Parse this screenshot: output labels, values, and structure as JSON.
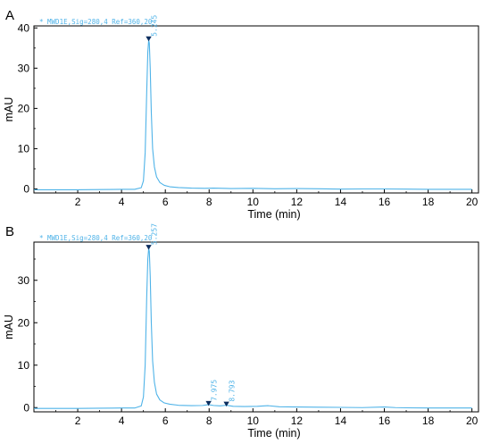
{
  "chart_data": [
    {
      "type": "line",
      "panel_label": "A",
      "header": "MWD1E,Sig=280,4  Ref=360,20",
      "xlabel": "Time (min)",
      "ylabel": "mAU",
      "xlim": [
        0,
        20.3
      ],
      "ylim": [
        -1,
        40.5
      ],
      "xticks": [
        2,
        4,
        6,
        8,
        10,
        12,
        14,
        16,
        18,
        20
      ],
      "yticks": [
        0,
        10,
        20,
        30,
        40
      ],
      "line_color": "#4fb3e8",
      "grid": false,
      "series": [
        {
          "x": [
            0,
            1,
            2,
            3,
            4,
            4.6,
            4.9,
            5.0,
            5.08,
            5.15,
            5.2,
            5.24,
            5.27,
            5.31,
            5.36,
            5.42,
            5.5,
            5.6,
            5.75,
            5.95,
            6.2,
            6.6,
            7.2,
            7.8,
            8.2,
            9,
            10,
            11,
            12,
            13,
            14,
            15,
            16,
            17,
            18,
            19,
            20
          ],
          "y": [
            -0.2,
            -0.2,
            -0.2,
            -0.15,
            -0.1,
            -0.1,
            0.3,
            2,
            9,
            24,
            34,
            37,
            36.2,
            30,
            19,
            10,
            5.5,
            3,
            1.6,
            0.9,
            0.55,
            0.35,
            0.2,
            0.15,
            0.2,
            0.1,
            0.15,
            0.05,
            0.1,
            0.05,
            -0.05,
            0,
            0,
            -0.05,
            -0.1,
            -0.1,
            -0.1
          ]
        }
      ],
      "peaks": [
        {
          "time": 5.24,
          "height": 37,
          "label": "5.245"
        }
      ]
    },
    {
      "type": "line",
      "panel_label": "B",
      "header": "MWD1E,Sig=280,4  Ref=360,20",
      "xlabel": "Time (min)",
      "ylabel": "mAU",
      "xlim": [
        0,
        20.3
      ],
      "ylim": [
        -1,
        39
      ],
      "xticks": [
        2,
        4,
        6,
        8,
        10,
        12,
        14,
        16,
        18,
        20
      ],
      "yticks": [
        0,
        10,
        20,
        30
      ],
      "line_color": "#4fb3e8",
      "grid": false,
      "series": [
        {
          "x": [
            0,
            1,
            2,
            3,
            4,
            4.6,
            4.9,
            5.0,
            5.08,
            5.15,
            5.2,
            5.24,
            5.27,
            5.31,
            5.36,
            5.42,
            5.5,
            5.6,
            5.75,
            5.95,
            6.2,
            6.6,
            7.2,
            7.7,
            7.975,
            8.2,
            8.5,
            8.79,
            9.1,
            9.6,
            10.2,
            10.7,
            11.2,
            12,
            13,
            14,
            15,
            16,
            16.5,
            17,
            18,
            19,
            20
          ],
          "y": [
            -0.2,
            -0.2,
            -0.2,
            -0.15,
            -0.1,
            -0.1,
            0.4,
            2.5,
            10,
            26,
            35,
            37.5,
            36.8,
            31,
            20,
            11,
            6,
            3.2,
            1.8,
            1.1,
            0.8,
            0.55,
            0.45,
            0.5,
            0.7,
            0.5,
            0.4,
            0.55,
            0.3,
            0.25,
            0.3,
            0.45,
            0.2,
            0.15,
            0.1,
            0.05,
            0,
            0.15,
            0,
            -0.05,
            -0.1,
            -0.1,
            -0.1
          ]
        }
      ],
      "peaks": [
        {
          "time": 5.24,
          "height": 37.5,
          "label": "5.257"
        },
        {
          "time": 7.975,
          "height": 0.7,
          "label": "7.975"
        },
        {
          "time": 8.79,
          "height": 0.55,
          "label": "8.793"
        }
      ]
    }
  ]
}
